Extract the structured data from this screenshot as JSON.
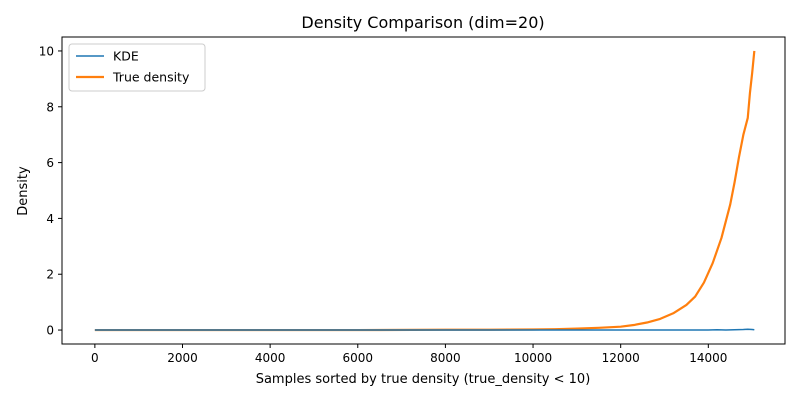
{
  "chart_data": {
    "type": "line",
    "title": "Density Comparison (dim=20)",
    "xlabel": "Samples sorted by true density (true_density < 10)",
    "ylabel": "Density",
    "xlim": [
      -750,
      15750
    ],
    "ylim": [
      -0.5,
      10.5
    ],
    "xticks": [
      0,
      2000,
      4000,
      6000,
      8000,
      10000,
      12000,
      14000
    ],
    "yticks": [
      0,
      2,
      4,
      6,
      8,
      10
    ],
    "grid": false,
    "legend_position": "upper-left",
    "series": [
      {
        "name": "KDE",
        "color": "#1f77b4",
        "x": [
          0,
          2000,
          4000,
          6000,
          8000,
          10000,
          11000,
          12000,
          12500,
          13000,
          13500,
          14000,
          14200,
          14400,
          14600,
          14800,
          14900,
          15000,
          15050
        ],
        "y": [
          0,
          0,
          0,
          0,
          0,
          0,
          0,
          0,
          0,
          0,
          0,
          0,
          0.01,
          0,
          0.01,
          0.02,
          0.03,
          0.02,
          0.01
        ]
      },
      {
        "name": "True density",
        "color": "#ff7f0e",
        "x": [
          0,
          2000,
          4000,
          6000,
          8000,
          9000,
          10000,
          10500,
          11000,
          11500,
          12000,
          12300,
          12600,
          12900,
          13200,
          13500,
          13700,
          13900,
          14100,
          14300,
          14500,
          14600,
          14700,
          14800,
          14900,
          14950,
          15000,
          15050
        ],
        "y": [
          0,
          0,
          0,
          0,
          0.01,
          0.01,
          0.02,
          0.03,
          0.05,
          0.08,
          0.12,
          0.18,
          0.27,
          0.4,
          0.6,
          0.9,
          1.2,
          1.7,
          2.4,
          3.3,
          4.5,
          5.3,
          6.2,
          7.0,
          7.6,
          8.5,
          9.2,
          10.0
        ]
      }
    ]
  }
}
